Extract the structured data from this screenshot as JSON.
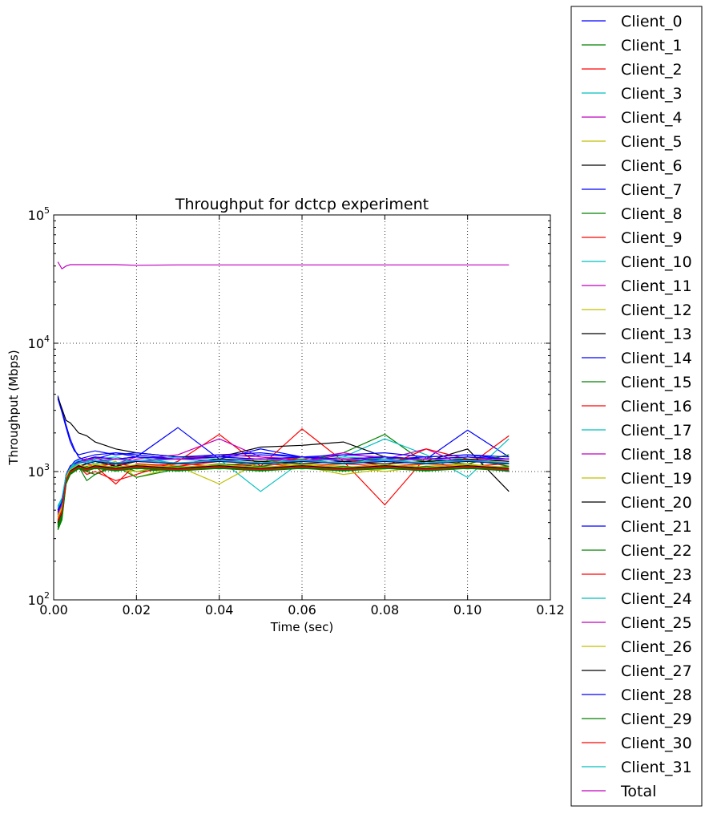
{
  "chart_data": {
    "type": "line",
    "title": "Throughput for dctcp experiment",
    "xlabel": "Time (sec)",
    "ylabel": "Throughput (Mbps)",
    "xlim": [
      0,
      0.12
    ],
    "ylim": [
      100,
      100000
    ],
    "yscale": "log",
    "grid": true,
    "legend_position": "right, outside plot",
    "x_tick_labels": [
      "0.00",
      "0.02",
      "0.04",
      "0.06",
      "0.08",
      "0.10",
      "0.12"
    ],
    "y_tick_labels": [
      {
        "base": "10",
        "exp": "2"
      },
      {
        "base": "10",
        "exp": "3"
      },
      {
        "base": "10",
        "exp": "4"
      },
      {
        "base": "10",
        "exp": "5"
      }
    ],
    "x": [
      0.001,
      0.002,
      0.003,
      0.004,
      0.005,
      0.006,
      0.008,
      0.01,
      0.015,
      0.02,
      0.03,
      0.04,
      0.05,
      0.06,
      0.07,
      0.08,
      0.09,
      0.1,
      0.11
    ],
    "series": [
      {
        "name": "Client_0",
        "color": "#0000ff",
        "values": [
          3900,
          3000,
          2300,
          1800,
          1500,
          1300,
          1200,
          1250,
          1400,
          1300,
          2200,
          1250,
          1500,
          1300,
          1200,
          1300,
          1250,
          2100,
          1300
        ]
      },
      {
        "name": "Client_1",
        "color": "#008000",
        "values": [
          350,
          420,
          800,
          950,
          1000,
          1100,
          850,
          950,
          1150,
          1000,
          1050,
          1150,
          1100,
          1200,
          1400,
          1950,
          1150,
          1250,
          1100
        ]
      },
      {
        "name": "Client_2",
        "color": "#ff0000",
        "values": [
          400,
          480,
          850,
          1000,
          1050,
          1100,
          950,
          1000,
          850,
          950,
          1200,
          1950,
          1100,
          2150,
          1200,
          550,
          1300,
          1100,
          1900
        ]
      },
      {
        "name": "Client_3",
        "color": "#00bfbf",
        "values": [
          500,
          600,
          900,
          1050,
          1100,
          1150,
          1200,
          1250,
          1300,
          1200,
          1300,
          1250,
          700,
          1200,
          1300,
          1800,
          1350,
          900,
          1800
        ]
      },
      {
        "name": "Client_4",
        "color": "#bf00bf",
        "values": [
          450,
          550,
          950,
          1100,
          1150,
          1200,
          1250,
          1300,
          1100,
          1250,
          1350,
          1800,
          1300,
          1250,
          1400,
          1250,
          1500,
          1100,
          1000
        ]
      },
      {
        "name": "Client_5",
        "color": "#bfbf00",
        "values": [
          420,
          500,
          880,
          1000,
          1050,
          1100,
          1150,
          1100,
          1200,
          900,
          1100,
          800,
          1200,
          1100,
          950,
          1050,
          1150,
          1300,
          1150
        ]
      },
      {
        "name": "Client_6",
        "color": "#000000",
        "values": [
          3800,
          3100,
          2500,
          2400,
          2200,
          2000,
          1900,
          1700,
          1500,
          1400,
          1300,
          1300,
          1550,
          1600,
          1700,
          1300,
          1200,
          1500,
          700
        ]
      },
      {
        "name": "Client_7",
        "color": "#0000ff",
        "values": [
          480,
          560,
          920,
          1080,
          1200,
          1250,
          1300,
          1350,
          1400,
          1350,
          1250,
          1300,
          1350,
          1300,
          1200,
          1250,
          1300,
          1350,
          1250
        ]
      },
      {
        "name": "Client_8",
        "color": "#008000",
        "values": [
          370,
          440,
          820,
          960,
          1000,
          1050,
          1000,
          950,
          1100,
          900,
          1050,
          1100,
          1200,
          1250,
          1150,
          1300,
          1200,
          1150,
          1350
        ]
      },
      {
        "name": "Client_9",
        "color": "#ff0000",
        "values": [
          410,
          490,
          860,
          980,
          1020,
          1080,
          1000,
          1100,
          800,
          1150,
          1100,
          1200,
          1150,
          1300,
          1250,
          1100,
          1500,
          1250,
          1150
        ]
      },
      {
        "name": "Client_10",
        "color": "#00bfbf",
        "values": [
          510,
          590,
          910,
          1040,
          1120,
          1160,
          1200,
          1150,
          1250,
          1300,
          1150,
          1250,
          1250,
          1200,
          1300,
          1250,
          1150,
          1300,
          1250
        ]
      },
      {
        "name": "Client_11",
        "color": "#bf00bf",
        "values": [
          440,
          530,
          930,
          1090,
          1140,
          1180,
          1220,
          1280,
          1150,
          1300,
          1250,
          1350,
          1300,
          1200,
          1350,
          1300,
          1250,
          1300,
          1200
        ]
      },
      {
        "name": "Client_12",
        "color": "#bfbf00",
        "values": [
          430,
          510,
          890,
          1010,
          1060,
          1120,
          1100,
          1150,
          1050,
          1000,
          1150,
          1100,
          1050,
          1150,
          1100,
          1000,
          1100,
          1150,
          1050
        ]
      },
      {
        "name": "Client_13",
        "color": "#000000",
        "values": [
          380,
          460,
          840,
          990,
          1040,
          1090,
          1150,
          1200,
          1100,
          1200,
          1150,
          1250,
          1200,
          1150,
          1200,
          1150,
          1200,
          1250,
          1200
        ]
      },
      {
        "name": "Client_14",
        "color": "#0000ff",
        "values": [
          3700,
          2900,
          2200,
          1700,
          1450,
          1350,
          1400,
          1450,
          1350,
          1400,
          1300,
          1350,
          1400,
          1300,
          1350,
          1400,
          1300,
          1350,
          1300
        ]
      },
      {
        "name": "Client_15",
        "color": "#008000",
        "values": [
          360,
          430,
          810,
          950,
          1000,
          1050,
          1100,
          1050,
          1100,
          1050,
          1100,
          1050,
          1100,
          1050,
          1100,
          1050,
          1100,
          1050,
          1100
        ]
      },
      {
        "name": "Client_16",
        "color": "#ff0000",
        "values": [
          420,
          500,
          870,
          1000,
          1050,
          1100,
          1150,
          1100,
          1150,
          1100,
          1150,
          1100,
          1150,
          1100,
          1150,
          1100,
          1150,
          1100,
          1150
        ]
      },
      {
        "name": "Client_17",
        "color": "#00bfbf",
        "values": [
          520,
          600,
          920,
          1050,
          1150,
          1200,
          1250,
          1200,
          1250,
          1200,
          1250,
          1200,
          1250,
          1200,
          1250,
          1200,
          1250,
          1200,
          1250
        ]
      },
      {
        "name": "Client_18",
        "color": "#bf00bf",
        "values": [
          460,
          540,
          940,
          1100,
          1150,
          1200,
          1250,
          1300,
          1250,
          1300,
          1250,
          1300,
          1250,
          1300,
          1250,
          1300,
          1250,
          1300,
          1250
        ]
      },
      {
        "name": "Client_19",
        "color": "#bfbf00",
        "values": [
          440,
          520,
          900,
          1020,
          1070,
          1120,
          1050,
          1100,
          1050,
          1100,
          1050,
          1100,
          1050,
          1100,
          1050,
          1100,
          1050,
          1100,
          1050
        ]
      },
      {
        "name": "Client_20",
        "color": "#000000",
        "values": [
          390,
          470,
          850,
          1000,
          1050,
          1100,
          1150,
          1200,
          1150,
          1200,
          1150,
          1200,
          1150,
          1200,
          1150,
          1200,
          1150,
          1200,
          1150
        ]
      },
      {
        "name": "Client_21",
        "color": "#0000ff",
        "values": [
          490,
          570,
          930,
          1090,
          1150,
          1200,
          1250,
          1300,
          1250,
          1300,
          1250,
          1300,
          1250,
          1300,
          1250,
          1300,
          1250,
          1300,
          1250
        ]
      },
      {
        "name": "Client_22",
        "color": "#008000",
        "values": [
          380,
          450,
          830,
          970,
          1010,
          1060,
          1010,
          1060,
          1010,
          1060,
          1010,
          1060,
          1010,
          1060,
          1010,
          1060,
          1010,
          1060,
          1010
        ]
      },
      {
        "name": "Client_23",
        "color": "#ff0000",
        "values": [
          400,
          480,
          850,
          990,
          1030,
          1080,
          1030,
          1080,
          1030,
          1080,
          1030,
          1080,
          1030,
          1080,
          1030,
          1080,
          1030,
          1080,
          1030
        ]
      },
      {
        "name": "Client_24",
        "color": "#00bfbf",
        "values": [
          530,
          610,
          930,
          1060,
          1160,
          1210,
          1160,
          1210,
          1160,
          1210,
          1160,
          1210,
          1160,
          1210,
          1160,
          1210,
          1160,
          1210,
          1160
        ]
      },
      {
        "name": "Client_25",
        "color": "#bf00bf",
        "values": [
          470,
          550,
          950,
          1110,
          1160,
          1210,
          1260,
          1210,
          1260,
          1210,
          1260,
          1210,
          1260,
          1210,
          1260,
          1210,
          1260,
          1210,
          1260
        ]
      },
      {
        "name": "Client_26",
        "color": "#bfbf00",
        "values": [
          450,
          530,
          910,
          1030,
          1080,
          1130,
          1080,
          1130,
          1080,
          1130,
          1080,
          1130,
          1080,
          1130,
          1080,
          1130,
          1080,
          1130,
          1080
        ]
      },
      {
        "name": "Client_27",
        "color": "#000000",
        "values": [
          400,
          480,
          860,
          1010,
          1060,
          1110,
          1060,
          1110,
          1060,
          1110,
          1060,
          1110,
          1060,
          1110,
          1060,
          1110,
          1060,
          1110,
          1060
        ]
      },
      {
        "name": "Client_28",
        "color": "#0000ff",
        "values": [
          500,
          580,
          940,
          1100,
          1160,
          1210,
          1160,
          1210,
          1160,
          1210,
          1160,
          1210,
          1160,
          1210,
          1160,
          1210,
          1160,
          1210,
          1160
        ]
      },
      {
        "name": "Client_29",
        "color": "#008000",
        "values": [
          390,
          460,
          840,
          980,
          1020,
          1070,
          1020,
          1070,
          1020,
          1070,
          1020,
          1070,
          1020,
          1070,
          1020,
          1070,
          1020,
          1070,
          1020
        ]
      },
      {
        "name": "Client_30",
        "color": "#ff0000",
        "values": [
          410,
          490,
          860,
          1000,
          1040,
          1090,
          1040,
          1090,
          1040,
          1090,
          1040,
          1090,
          1040,
          1090,
          1040,
          1090,
          1040,
          1090,
          1040
        ]
      },
      {
        "name": "Client_31",
        "color": "#00bfbf",
        "values": [
          540,
          620,
          940,
          1070,
          1170,
          1220,
          1170,
          1220,
          1170,
          1220,
          1170,
          1220,
          1170,
          1220,
          1170,
          1220,
          1170,
          1220,
          1170
        ]
      },
      {
        "name": "Total",
        "color": "#bf00bf",
        "values": [
          43000,
          38000,
          40000,
          41000,
          41000,
          41000,
          41000,
          41000,
          41000,
          40500,
          40800,
          40800,
          40800,
          40800,
          40800,
          40800,
          40800,
          40800,
          40800
        ]
      }
    ]
  }
}
